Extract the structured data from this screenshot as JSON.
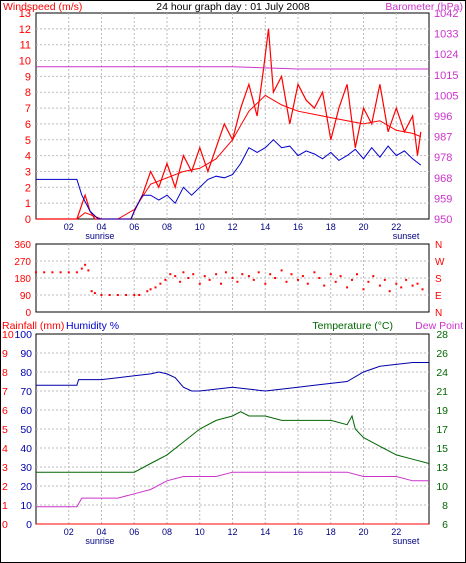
{
  "chart_data": [
    {
      "id": "wind-baro",
      "type": "line",
      "title": "24 hour graph day : 01 July 2008",
      "left_axis_label": "Windspeed (m/s)",
      "right_axis_label": "Barometer (hPa)",
      "left_ylim": [
        0,
        13
      ],
      "left_ticks": [
        "0",
        "1",
        "2",
        "3",
        "4",
        "5",
        "6",
        "7",
        "8",
        "9",
        "10",
        "11",
        "12",
        "13"
      ],
      "right_ticks": [
        "950",
        "959",
        "968",
        "978",
        "987",
        "996",
        "1005",
        "1015",
        "1024",
        "1033",
        "1042"
      ],
      "xlim": [
        0,
        24
      ],
      "x_ticks": [
        "02",
        "04",
        "06",
        "08",
        "10",
        "12",
        "14",
        "16",
        "18",
        "20",
        "22"
      ],
      "sunrise_label": "sunrise",
      "sunset_label": "sunset",
      "sunrise_hour": 3.9,
      "sunset_hour": 22.6,
      "series": [
        {
          "color": "#ff0000",
          "kind": "gust",
          "x": [
            0,
            2.5,
            3.0,
            3.3,
            3.6,
            4.0,
            5.0,
            5.8,
            6.0,
            6.5,
            7.0,
            7.5,
            8.0,
            8.5,
            9.0,
            9.5,
            10.0,
            10.5,
            11.0,
            11.5,
            12.0,
            12.5,
            13.0,
            13.5,
            13.9,
            14.2,
            14.5,
            15.0,
            15.5,
            16.0,
            16.5,
            17.0,
            17.5,
            18.0,
            18.5,
            19.0,
            19.5,
            20.0,
            20.5,
            21.0,
            21.5,
            22.0,
            22.5,
            23.0,
            23.3,
            23.5
          ],
          "values": [
            0,
            0,
            1.5,
            0.5,
            0,
            0,
            0,
            0,
            0.5,
            1.5,
            3.0,
            2.0,
            3.5,
            2.0,
            4.0,
            3.0,
            4.5,
            3.0,
            4.5,
            6.0,
            5.0,
            7.0,
            8.5,
            6.5,
            9.5,
            12.0,
            8.0,
            9.0,
            6.0,
            8.5,
            7.5,
            7.0,
            8.0,
            5.0,
            7.0,
            8.5,
            4.5,
            7.0,
            6.0,
            8.5,
            5.5,
            7.0,
            5.5,
            6.5,
            4.0,
            5.5
          ]
        },
        {
          "color": "#ff0000",
          "kind": "average",
          "x": [
            0,
            2.5,
            3.0,
            3.5,
            4.0,
            5.0,
            6.0,
            7.0,
            8.0,
            9.0,
            10.0,
            11.0,
            12.0,
            13.0,
            14.0,
            15.0,
            16.0,
            17.0,
            18.0,
            19.0,
            20.0,
            21.0,
            22.0,
            23.0,
            23.5
          ],
          "values": [
            0,
            0,
            0.4,
            0.2,
            0,
            0,
            0.6,
            2.2,
            2.6,
            3.0,
            3.2,
            3.8,
            5.0,
            6.8,
            7.8,
            7.2,
            6.8,
            6.6,
            6.4,
            6.2,
            6.0,
            6.2,
            5.6,
            5.4,
            5.2
          ]
        },
        {
          "color": "#0000cc",
          "kind": "average",
          "x": [
            0,
            2.5,
            2.8,
            3.3,
            3.8,
            4.0,
            5.0,
            5.8,
            6.0,
            6.5,
            7.0,
            7.5,
            8.0,
            8.5,
            9.0,
            9.5,
            10.0,
            10.5,
            11.0,
            11.5,
            12.0,
            12.5,
            13.0,
            13.5,
            14.0,
            14.5,
            15.0,
            15.5,
            16.0,
            16.5,
            17.0,
            17.5,
            18.0,
            18.5,
            19.0,
            19.5,
            20.0,
            20.5,
            21.0,
            21.5,
            22.0,
            22.5,
            23.0,
            23.5
          ],
          "values": [
            2.5,
            2.5,
            1.5,
            0.5,
            0,
            0,
            0,
            0,
            0.5,
            1.5,
            1.5,
            1.2,
            1.5,
            1.0,
            2.0,
            1.5,
            2.0,
            2.5,
            2.7,
            2.6,
            2.8,
            3.5,
            4.5,
            4.2,
            4.5,
            5.0,
            4.5,
            4.6,
            4.0,
            4.3,
            4.1,
            3.8,
            4.2,
            3.7,
            4.0,
            4.4,
            3.8,
            4.5,
            3.9,
            4.6,
            4.0,
            4.3,
            3.8,
            3.4
          ]
        },
        {
          "color": "#cc33cc",
          "kind": "barometer_hPa",
          "x": [
            0,
            4,
            8,
            12,
            16,
            20,
            22,
            24
          ],
          "values": [
            1018,
            1018,
            1018,
            1018,
            1017,
            1017,
            1017,
            1017
          ]
        }
      ]
    },
    {
      "id": "wind-direction",
      "type": "scatter",
      "left_ticks": [
        "0",
        "90",
        "180",
        "270",
        "360"
      ],
      "right_ticks": [
        "N",
        "E",
        "S",
        "W",
        "N"
      ],
      "ylim": [
        0,
        360
      ],
      "xlim": [
        0,
        24
      ],
      "color": "#ff0000",
      "points": [
        [
          0,
          210
        ],
        [
          0.5,
          210
        ],
        [
          1,
          210
        ],
        [
          1.5,
          210
        ],
        [
          2,
          210
        ],
        [
          2.5,
          210
        ],
        [
          2.8,
          230
        ],
        [
          3,
          250
        ],
        [
          3.2,
          220
        ],
        [
          3.4,
          110
        ],
        [
          3.6,
          100
        ],
        [
          4,
          90
        ],
        [
          4.5,
          90
        ],
        [
          5,
          90
        ],
        [
          5.5,
          90
        ],
        [
          6,
          90
        ],
        [
          6.3,
          90
        ],
        [
          6.8,
          110
        ],
        [
          7,
          120
        ],
        [
          7.3,
          130
        ],
        [
          7.6,
          150
        ],
        [
          7.9,
          170
        ],
        [
          8.2,
          200
        ],
        [
          8.5,
          190
        ],
        [
          8.8,
          160
        ],
        [
          9,
          210
        ],
        [
          9.3,
          180
        ],
        [
          9.6,
          200
        ],
        [
          10,
          150
        ],
        [
          10.3,
          190
        ],
        [
          10.6,
          170
        ],
        [
          11,
          200
        ],
        [
          11.3,
          150
        ],
        [
          11.6,
          210
        ],
        [
          12,
          180
        ],
        [
          12.3,
          160
        ],
        [
          12.6,
          200
        ],
        [
          13,
          190
        ],
        [
          13.3,
          170
        ],
        [
          13.6,
          210
        ],
        [
          14,
          150
        ],
        [
          14.3,
          200
        ],
        [
          14.6,
          180
        ],
        [
          15,
          220
        ],
        [
          15.3,
          160
        ],
        [
          15.6,
          200
        ],
        [
          16,
          170
        ],
        [
          16.3,
          190
        ],
        [
          16.6,
          150
        ],
        [
          17,
          210
        ],
        [
          17.3,
          180
        ],
        [
          17.6,
          140
        ],
        [
          18,
          200
        ],
        [
          18.3,
          160
        ],
        [
          18.6,
          190
        ],
        [
          19,
          130
        ],
        [
          19.3,
          170
        ],
        [
          19.6,
          200
        ],
        [
          20,
          120
        ],
        [
          20.3,
          160
        ],
        [
          20.6,
          190
        ],
        [
          21,
          140
        ],
        [
          21.3,
          170
        ],
        [
          21.6,
          110
        ],
        [
          22,
          150
        ],
        [
          22.3,
          130
        ],
        [
          22.6,
          170
        ],
        [
          23,
          140
        ],
        [
          23.3,
          150
        ],
        [
          23.6,
          120
        ]
      ]
    },
    {
      "id": "rain-humidity-temp",
      "type": "line",
      "rain_label": "Rainfall (mm)",
      "humidity_label": "Humidity %",
      "temp_label": "Temperature (°C)",
      "dew_label": "Dew Point",
      "rain_ticks": [
        "0",
        "1",
        "2",
        "3",
        "4",
        "5",
        "6",
        "7",
        "8",
        "9",
        "10"
      ],
      "humidity_ticks": [
        "0",
        "10",
        "20",
        "30",
        "40",
        "50",
        "60",
        "70",
        "80",
        "90",
        "100"
      ],
      "temp_ticks": [
        "6",
        "8",
        "10",
        "13",
        "15",
        "17",
        "19",
        "21",
        "24",
        "26",
        "28"
      ],
      "xlim": [
        0,
        24
      ],
      "x_ticks": [
        "02",
        "04",
        "06",
        "08",
        "10",
        "12",
        "14",
        "16",
        "18",
        "20",
        "22"
      ],
      "sunrise_label": "sunrise",
      "sunset_label": "sunset",
      "series": [
        {
          "color": "#0000aa",
          "kind": "humidity_pct",
          "x": [
            0,
            2.5,
            2.6,
            3.5,
            4,
            5,
            6,
            7,
            7.5,
            8,
            8.5,
            9,
            9.5,
            10,
            11,
            12,
            13,
            14,
            15,
            16,
            17,
            18,
            19,
            20,
            21,
            22,
            23,
            24
          ],
          "values": [
            73,
            73,
            76,
            76,
            76,
            77,
            78,
            79,
            80,
            79,
            77,
            72,
            70,
            70,
            71,
            72,
            71,
            70,
            71,
            72,
            73,
            74,
            75,
            80,
            83,
            84,
            85,
            85
          ]
        },
        {
          "color": "#006600",
          "kind": "temperature_C",
          "x": [
            0,
            2.5,
            2.6,
            5,
            6,
            7,
            8,
            9,
            10,
            11,
            12,
            12.5,
            13,
            14,
            15,
            16,
            17,
            18,
            19,
            19.3,
            19.5,
            20,
            21,
            22,
            23,
            24
          ],
          "values": [
            12,
            12,
            12,
            12,
            12,
            13,
            14,
            15.5,
            17,
            18,
            18.5,
            19,
            18.5,
            18.5,
            18,
            18,
            18,
            18,
            17.5,
            18.5,
            17,
            16,
            15,
            14,
            13.5,
            13
          ]
        },
        {
          "color": "#cc33cc",
          "kind": "dewpoint_C",
          "x": [
            0,
            2.5,
            2.8,
            3.5,
            4,
            5,
            6,
            7,
            8,
            9,
            10,
            11,
            12,
            13,
            14,
            15,
            16,
            17,
            18,
            19,
            20,
            21,
            22,
            23,
            24
          ],
          "values": [
            8,
            8,
            9,
            9,
            9,
            9,
            9.5,
            10,
            11,
            11.5,
            11.5,
            11.5,
            12,
            12,
            12,
            12,
            12,
            12,
            12,
            12,
            11.5,
            11.5,
            11.5,
            11,
            11
          ]
        },
        {
          "color": "#ff0000",
          "kind": "rain_mm",
          "x": [
            0,
            24
          ],
          "values": [
            0,
            0
          ]
        }
      ]
    }
  ]
}
